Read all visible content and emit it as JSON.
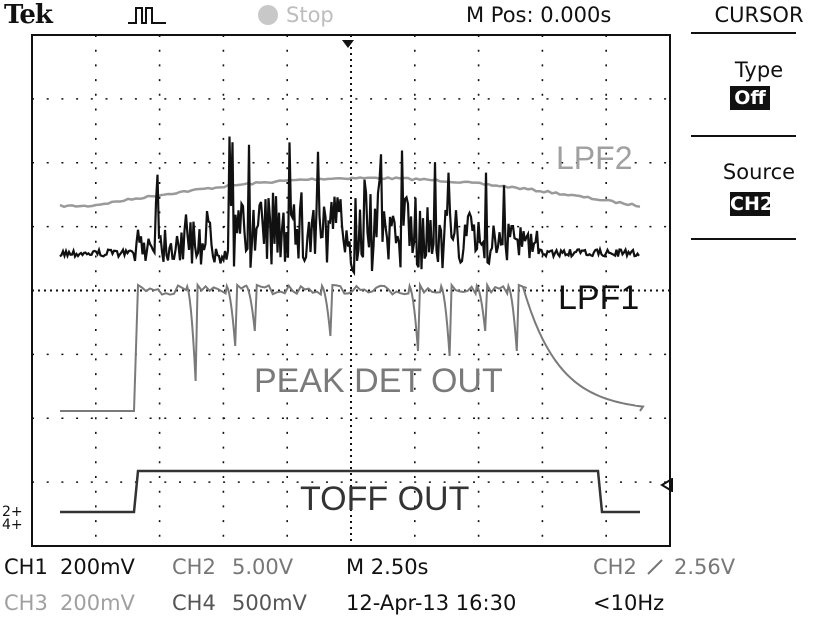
{
  "header": {
    "brand": "Tek",
    "trigger_icon": "pulse-trigger-icon",
    "run_state": "Stop",
    "m_pos": "M Pos: 0.000s"
  },
  "menu": {
    "title": "CURSOR",
    "type_label": "Type",
    "type_value": "Off",
    "source_label": "Source",
    "source_value": "CH2"
  },
  "traces": {
    "lpf2": "LPF2",
    "lpf1": "LPF1",
    "peak": "PEAK DET OUT",
    "toff": "TOFF OUT"
  },
  "channel_markers": {
    "ch2": "2+",
    "ch4": "4+"
  },
  "readouts": {
    "ch1": "CH1",
    "ch1_scale": "200mV",
    "ch2": "CH2",
    "ch2_scale": "5.00V",
    "timebase": "M 2.50s",
    "trig_src": "CH2",
    "trig_slope_icon": "rising-edge-icon",
    "trig_level": "2.56V",
    "ch3": "CH3",
    "ch3_scale": "200mV",
    "ch4": "CH4",
    "ch4_scale": "500mV",
    "date": "12-Apr-13 16:30",
    "freq": "<10Hz"
  },
  "colors": {
    "grid": "#111111",
    "lpf1": "#111111",
    "lpf2": "#9a9a9a",
    "peak": "#7a7a7a",
    "toff": "#333333",
    "dim_text": "#a0a0a0"
  }
}
